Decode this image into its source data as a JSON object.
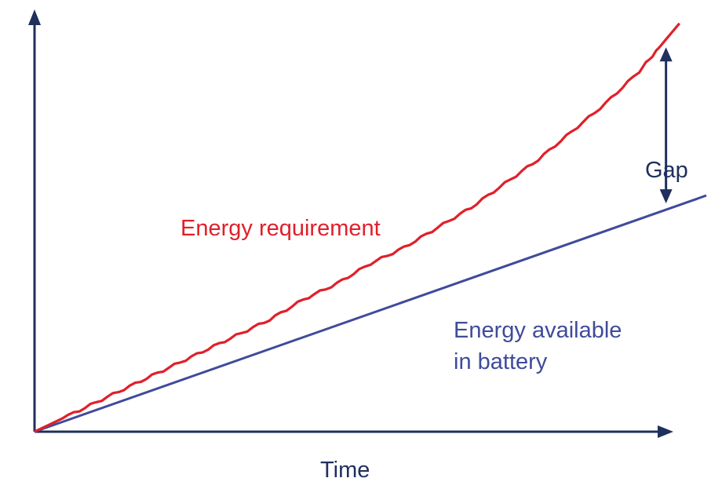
{
  "colors": {
    "axis": "#1f2f5e",
    "requirement": "#e0202a",
    "battery": "#3f4b9a",
    "gap": "#1f2f5e"
  },
  "chart_data": {
    "type": "line",
    "xlabel": "Time",
    "ylabel": "",
    "x_ticks": "none",
    "y_ticks": "none",
    "grid": false,
    "legend": "none",
    "xlim": [
      0,
      10
    ],
    "ylim": [
      0,
      10
    ],
    "series": [
      {
        "name": "Energy requirement",
        "x": [
          0,
          0.5,
          1,
          1.5,
          2,
          2.5,
          3,
          3.5,
          4,
          4.5,
          5,
          5.5,
          6,
          6.5,
          7,
          7.5,
          8,
          8.5,
          9,
          9.3,
          9.6
        ],
        "y": [
          0,
          0.4,
          0.8,
          1.2,
          1.6,
          2.0,
          2.4,
          2.8,
          3.3,
          3.7,
          4.2,
          4.6,
          5.1,
          5.6,
          6.2,
          6.8,
          7.5,
          8.2,
          9.0,
          9.6,
          10.2
        ]
      },
      {
        "name": "Energy available in battery",
        "x": [
          0,
          10
        ],
        "y": [
          0,
          5.9
        ]
      }
    ],
    "annotations": {
      "requirement_label": "Energy requirement",
      "battery_label_line1": "Energy available",
      "battery_label_line2": "in battery",
      "gap_label": "Gap",
      "gap_x": 9.4
    }
  }
}
